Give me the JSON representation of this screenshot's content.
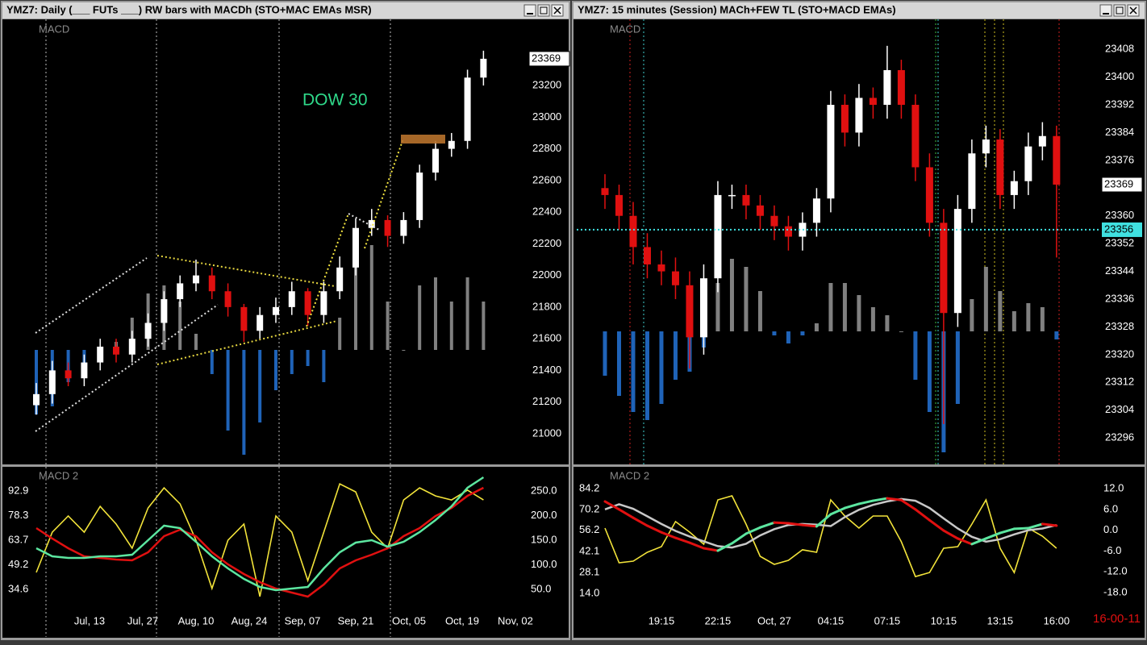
{
  "chart_data": [
    {
      "type": "candlestick",
      "title": "YMZ7: Daily (___ FUTs ___) RW bars with MACDh (STO+MAC EMAs MSR)",
      "panel_label": "MACD",
      "annotation": "DOW 30",
      "xlim": [
        -6.06,
        91.67
      ],
      "xticks": [
        {
          "value": 10,
          "label": "Jul, 13"
        },
        {
          "value": 20,
          "label": "Jul, 27"
        },
        {
          "value": 30,
          "label": "Aug, 10"
        },
        {
          "value": 40,
          "label": "Aug, 24"
        },
        {
          "value": 50,
          "label": "Sep, 07"
        },
        {
          "value": 60,
          "label": "Sep, 21"
        },
        {
          "value": 70,
          "label": "Oct, 05"
        },
        {
          "value": 80,
          "label": "Oct, 19"
        },
        {
          "value": 90,
          "label": "Nov, 02"
        }
      ],
      "ylim": [
        20811,
        23613
      ],
      "yticks": [
        21000,
        21200,
        21400,
        21600,
        21800,
        22000,
        22200,
        22400,
        22600,
        22800,
        23000,
        23200
      ],
      "last": 23369,
      "up_color": "#ffffff",
      "down_color": "#e01010",
      "candles": {
        "x": [
          0,
          3,
          6,
          9,
          12,
          15,
          18,
          21,
          24,
          27,
          30,
          33,
          36,
          39,
          42,
          45,
          48,
          51,
          54,
          57,
          60,
          63,
          66,
          69,
          72,
          75,
          78,
          81,
          84
        ],
        "open": [
          21180,
          21250,
          21400,
          21350,
          21450,
          21550,
          21500,
          21600,
          21700,
          21850,
          21950,
          22000,
          21900,
          21800,
          21650,
          21750,
          21800,
          21900,
          21750,
          21900,
          22050,
          22300,
          22350,
          22250,
          22350,
          22650,
          22800,
          22850,
          23250
        ],
        "high": [
          21320,
          21460,
          21450,
          21500,
          21600,
          21600,
          21650,
          21760,
          21900,
          22000,
          22100,
          22050,
          21950,
          21820,
          21800,
          21860,
          21960,
          21920,
          21960,
          22120,
          22360,
          22420,
          22380,
          22400,
          22700,
          22850,
          22900,
          23300,
          23420
        ],
        "low": [
          21120,
          21190,
          21300,
          21300,
          21400,
          21450,
          21450,
          21550,
          21650,
          21800,
          21900,
          21850,
          21740,
          21580,
          21600,
          21700,
          21750,
          21680,
          21700,
          21850,
          22000,
          22250,
          22180,
          22200,
          22300,
          22600,
          22750,
          22800,
          23200
        ],
        "close": [
          21250,
          21400,
          21350,
          21450,
          21550,
          21500,
          21600,
          21700,
          21850,
          21950,
          22000,
          21900,
          21800,
          21650,
          21750,
          21800,
          21900,
          21750,
          21900,
          22050,
          22300,
          22350,
          22250,
          22350,
          22650,
          22800,
          22850,
          23250,
          23369
        ]
      },
      "histogram": {
        "ylim": [
          -141,
          409
        ],
        "pos_color": "#808080",
        "neg_color": "#1f63b8",
        "values": [
          -80,
          -70,
          -40,
          -20,
          -10,
          10,
          40,
          70,
          80,
          60,
          20,
          -30,
          -100,
          -130,
          -90,
          -50,
          -30,
          -20,
          -40,
          40,
          110,
          130,
          60,
          0,
          80,
          90,
          60,
          90,
          60
        ]
      },
      "lower": {
        "type": "line",
        "panel_label": "MACD 2",
        "ylim": [
          20.7,
          106.8
        ],
        "yticks": [
          34.6,
          49.2,
          63.7,
          78.3,
          92.9
        ],
        "y2lim": [
          2.5,
          297.5
        ],
        "y2ticks": [
          {
            "value": 50,
            "label": "50.0"
          },
          {
            "value": 100,
            "label": "100.0"
          },
          {
            "value": 150,
            "label": "150.0"
          },
          {
            "value": 200,
            "label": "200.0"
          },
          {
            "value": 250,
            "label": "250.0"
          }
        ],
        "series": [
          {
            "color": "#f2e33a",
            "values": [
              44.6,
              68.5,
              78.1,
              68.5,
              83.8,
              73.3,
              59.0,
              82.9,
              94.8,
              85.3,
              63.7,
              35.1,
              63.7,
              73.3,
              30.3,
              78.1,
              68.5,
              39.8,
              68.5,
              97.2,
              92.4,
              68.5,
              59.0,
              87.6,
              94.8,
              90.0,
              87.6,
              93.4,
              87.6
            ]
          },
          {
            "color": "#e01010",
            "axis": "y2",
            "values": [
              174.6,
              153.3,
              133.6,
              117.2,
              114,
              110.7,
              109,
              125.4,
              158.2,
              171.3,
              158.2,
              125.4,
              100.9,
              81.2,
              64.8,
              51.7,
              43.5,
              35.3,
              59.9,
              92.7,
              109,
              120.5,
              133.6,
              158.2,
              174.6,
              199.2,
              215.6,
              240.2,
              256.6
            ]
          },
          {
            "color": "#5ce6a0",
            "axis": "y2",
            "values": [
              133.6,
              117.2,
              114,
              114,
              117.2,
              117.2,
              120.5,
              150,
              179.5,
              174.6,
              146.7,
              117.2,
              92.7,
              71.3,
              54.9,
              48.4,
              51.7,
              54.9,
              92.7,
              125.4,
              145.1,
              150,
              136.9,
              146.7,
              166.4,
              191,
              218.9,
              256.6,
              277.9
            ]
          }
        ]
      }
    },
    {
      "type": "candlestick",
      "title": "YMZ7: 15 minutes (Session)  MACh+FEW TL (STO+MACD EMAs)",
      "panel_label": "MACD",
      "xlim": [
        -6.0,
        104.6
      ],
      "xticks": [
        {
          "value": 12,
          "label": "19:15"
        },
        {
          "value": 24,
          "label": "22:15"
        },
        {
          "value": 36,
          "label": "Oct, 27"
        },
        {
          "value": 48,
          "label": "04:15"
        },
        {
          "value": 60,
          "label": "07:15"
        },
        {
          "value": 72,
          "label": "10:15"
        },
        {
          "value": 84,
          "label": "13:15"
        },
        {
          "value": 96,
          "label": "16:00"
        }
      ],
      "ylim": [
        23288.6,
        23416.4
      ],
      "yticks": [
        23296,
        23304,
        23312,
        23320,
        23328,
        23336,
        23344,
        23352,
        23360,
        23368,
        23376,
        23384,
        23392,
        23400,
        23408
      ],
      "last": 23369,
      "level": 23356,
      "level_color": "#40e0e0",
      "up_color": "#ffffff",
      "down_color": "#e01010",
      "candles": {
        "x": [
          0,
          3,
          6,
          9,
          12,
          15,
          18,
          21,
          24,
          27,
          30,
          33,
          36,
          39,
          42,
          45,
          48,
          51,
          54,
          57,
          60,
          63,
          66,
          69,
          72,
          75,
          78,
          81,
          84,
          87,
          90,
          93,
          96
        ],
        "open": [
          23368,
          23366,
          23360,
          23351,
          23346,
          23344,
          23340,
          23325,
          23342,
          23366,
          23366,
          23363,
          23360,
          23357,
          23354,
          23358,
          23365,
          23392,
          23384,
          23394,
          23392,
          23402,
          23392,
          23374,
          23358,
          23332,
          23362,
          23378,
          23382,
          23366,
          23370,
          23380,
          23383
        ],
        "high": [
          23372,
          23369,
          23364,
          23355,
          23350,
          23348,
          23344,
          23346,
          23370,
          23369,
          23369,
          23366,
          23363,
          23360,
          23361,
          23368,
          23396,
          23395,
          23398,
          23397,
          23409,
          23405,
          23395,
          23378,
          23362,
          23366,
          23382,
          23386,
          23385,
          23373,
          23384,
          23387,
          23386
        ],
        "low": [
          23362,
          23356,
          23346,
          23342,
          23340,
          23336,
          23316,
          23320,
          23338,
          23362,
          23359,
          23356,
          23353,
          23350,
          23350,
          23354,
          23361,
          23380,
          23380,
          23388,
          23388,
          23388,
          23370,
          23354,
          23300,
          23328,
          23358,
          23374,
          23362,
          23362,
          23366,
          23376,
          23348
        ],
        "close": [
          23366,
          23360,
          23351,
          23346,
          23344,
          23340,
          23325,
          23342,
          23366,
          23366,
          23363,
          23360,
          23357,
          23354,
          23358,
          23365,
          23392,
          23384,
          23394,
          23392,
          23402,
          23392,
          23374,
          23358,
          23332,
          23362,
          23378,
          23382,
          23366,
          23370,
          23380,
          23383,
          23369
        ]
      },
      "histogram": {
        "ylim": [
          -164,
          386
        ],
        "pos_color": "#808080",
        "neg_color": "#1f63b8",
        "values": [
          -55,
          -80,
          -100,
          -110,
          -90,
          -60,
          -50,
          -20,
          60,
          90,
          80,
          50,
          -5,
          -15,
          -5,
          10,
          60,
          60,
          45,
          30,
          20,
          0,
          -60,
          -100,
          -150,
          -90,
          40,
          80,
          50,
          25,
          35,
          30,
          -10
        ]
      },
      "lower": {
        "type": "line",
        "panel_label": "MACD 2",
        "annotation": "16-00-11",
        "ylim": [
          1.04,
          98.2
        ],
        "yticks": [
          {
            "value": 14,
            "label": "14.0"
          },
          28.1,
          42.1,
          56.2,
          70.2,
          84.2
        ],
        "y2lim": [
          -23.8,
          18.05
        ],
        "y2ticks": [
          {
            "value": 12,
            "label": "12.0"
          },
          {
            "value": 6,
            "label": "6.0"
          },
          {
            "value": 0,
            "label": "0.0"
          },
          {
            "value": -6,
            "label": "-6.0"
          },
          {
            "value": -12,
            "label": "-12.0"
          },
          {
            "value": -18,
            "label": "-18.0"
          }
        ],
        "series": [
          {
            "color": "#f2e33a",
            "values": [
              57.7,
              34.5,
              35.6,
              41.5,
              45.3,
              62.1,
              55.0,
              46.9,
              76.6,
              79.3,
              60.4,
              38.8,
              33.4,
              36.1,
              43.2,
              41.5,
              76.6,
              65.8,
              57.7,
              65.8,
              65.8,
              48.6,
              25.3,
              28.0,
              44.2,
              45.3,
              60.4,
              76.6,
              44.2,
              28.0,
              57.7,
              52.3,
              44.2
            ]
          },
          {
            "color": "#c8c8c8",
            "axis": "y2",
            "values": [
              6.0,
              7.5,
              6.2,
              4.0,
              1.8,
              -0.2,
              -1.8,
              -3.2,
              -4.6,
              -5.0,
              -3.9,
              -1.5,
              0.3,
              1.5,
              1.8,
              1.6,
              1.2,
              3.8,
              5.9,
              7.3,
              8.3,
              9.0,
              8.5,
              6.4,
              3.4,
              0.5,
              -1.9,
              -3.3,
              -2.6,
              -1.2,
              0.0,
              0.5,
              1.5
            ]
          },
          {
            "color": "#e01010",
            "color_up": "#5ce6a0",
            "axis": "y2",
            "values": [
              8.3,
              6.0,
              3.6,
              1.3,
              -0.6,
              -2.2,
              -3.6,
              -5.2,
              -5.9,
              -3.8,
              -1.0,
              0.8,
              2.2,
              2.0,
              1.5,
              1.1,
              4.6,
              6.4,
              7.6,
              8.5,
              9.2,
              8.7,
              6.0,
              2.9,
              -0.1,
              -2.4,
              -4.0,
              -2.4,
              -0.8,
              0.4,
              0.6,
              1.8,
              1.3
            ]
          }
        ]
      }
    }
  ]
}
